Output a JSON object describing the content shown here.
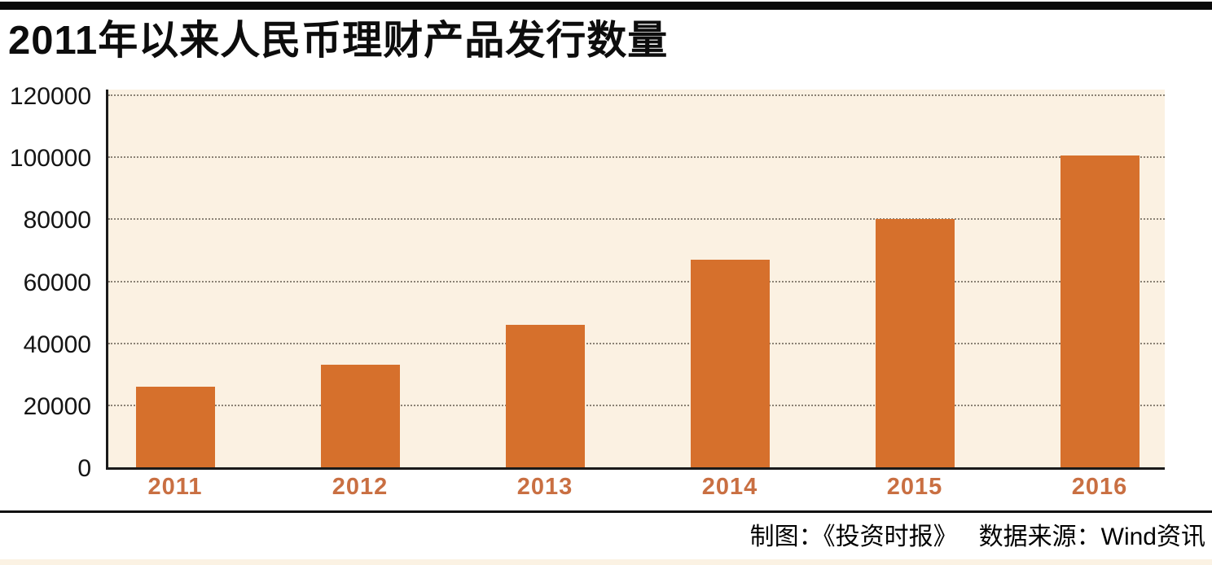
{
  "chart_data": {
    "type": "bar",
    "title": "2011年以来人民币理财产品发行数量",
    "categories": [
      "2011",
      "2012",
      "2013",
      "2014",
      "2015",
      "2016"
    ],
    "values": [
      26000,
      33000,
      46000,
      67000,
      80000,
      100500
    ],
    "xlabel": "",
    "ylabel": "",
    "ylim": [
      0,
      120000
    ],
    "yticks": [
      0,
      20000,
      40000,
      60000,
      80000,
      100000,
      120000
    ],
    "grid": "horizontal-dotted",
    "legend": "none",
    "bar_color": "#d6702c",
    "category_label_color": "#c96f42",
    "plot_background": "#fbf1e2",
    "gridline_color": "#8b8275",
    "axis_color": "#1a1a1a"
  },
  "footer": {
    "credit": "制图：《投资时报》",
    "source": "数据来源：Wind资讯"
  },
  "accents": {
    "top_bar_color": "#0a0a0a",
    "bottom_strip_color": "#fbf2e3"
  }
}
